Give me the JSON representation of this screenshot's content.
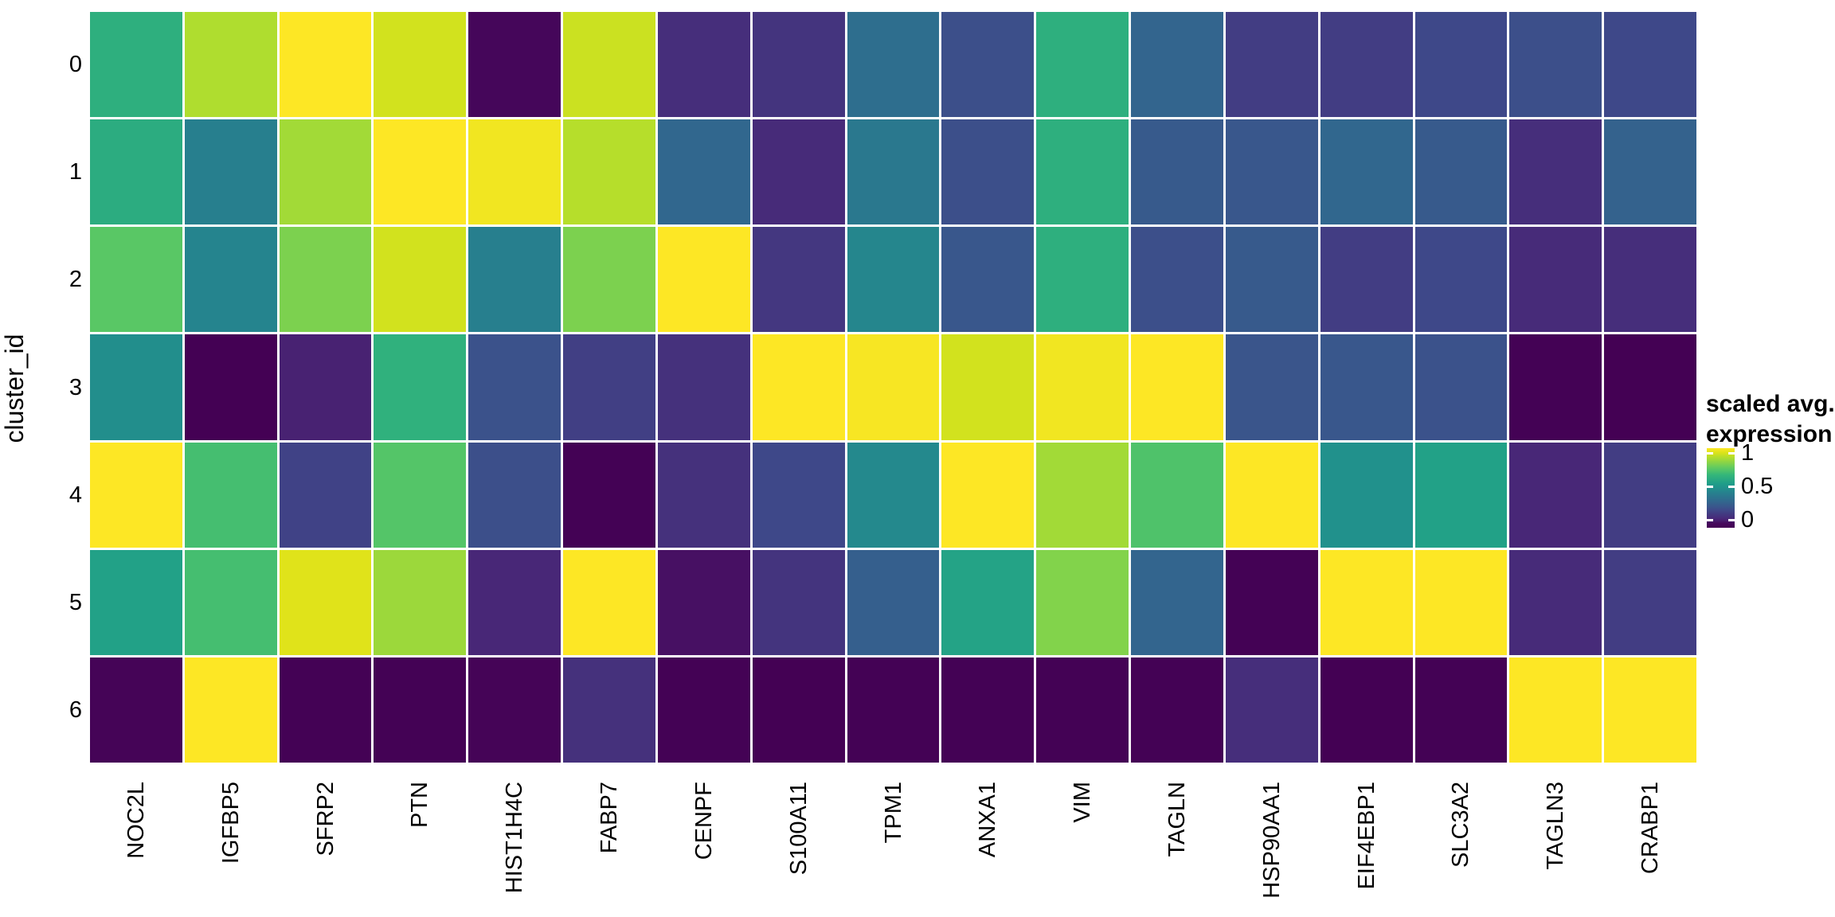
{
  "figure": {
    "background": "#ffffff",
    "grid_gap_color": "#ffffff",
    "text_color": "#000000"
  },
  "chart_data": {
    "type": "heatmap",
    "title": "",
    "xlabel": "",
    "ylabel": "cluster_id",
    "x_categories": [
      "NOC2L",
      "IGFBP5",
      "SFRP2",
      "PTN",
      "HIST1H4C",
      "FABP7",
      "CENPF",
      "S100A11",
      "TPM1",
      "ANXA1",
      "VIM",
      "TAGLN",
      "HSP90AA1",
      "EIF4EBP1",
      "SLC3A2",
      "TAGLN3",
      "CRABP1"
    ],
    "y_categories": [
      "0",
      "1",
      "2",
      "3",
      "4",
      "5",
      "6"
    ],
    "value_range": [
      0,
      1
    ],
    "grid": false,
    "colormap": "viridis",
    "colormap_anchors": [
      [
        0.0,
        "#440154"
      ],
      [
        0.056,
        "#46085c"
      ],
      [
        0.111,
        "#482878"
      ],
      [
        0.222,
        "#3e4989"
      ],
      [
        0.25,
        "#3b528b"
      ],
      [
        0.333,
        "#31688e"
      ],
      [
        0.444,
        "#26828e"
      ],
      [
        0.5,
        "#21918c"
      ],
      [
        0.556,
        "#1f9e89"
      ],
      [
        0.667,
        "#35b779"
      ],
      [
        0.75,
        "#5ec962"
      ],
      [
        0.778,
        "#6ece58"
      ],
      [
        0.889,
        "#b5de2b"
      ],
      [
        0.944,
        "#dce319"
      ],
      [
        1.0,
        "#fde725"
      ]
    ],
    "values": [
      [
        0.63,
        0.88,
        1.0,
        0.93,
        0.04,
        0.92,
        0.13,
        0.15,
        0.36,
        0.24,
        0.63,
        0.32,
        0.18,
        0.18,
        0.22,
        0.24,
        0.22
      ],
      [
        0.62,
        0.43,
        0.86,
        1.0,
        0.98,
        0.89,
        0.33,
        0.12,
        0.4,
        0.24,
        0.63,
        0.28,
        0.27,
        0.33,
        0.28,
        0.13,
        0.31
      ],
      [
        0.74,
        0.45,
        0.8,
        0.93,
        0.43,
        0.8,
        1.0,
        0.16,
        0.46,
        0.27,
        0.63,
        0.24,
        0.28,
        0.18,
        0.22,
        0.12,
        0.13
      ],
      [
        0.49,
        0.0,
        0.1,
        0.64,
        0.25,
        0.19,
        0.14,
        1.0,
        0.99,
        0.93,
        0.98,
        1.0,
        0.26,
        0.27,
        0.25,
        0.01,
        0.0
      ],
      [
        1.0,
        0.7,
        0.2,
        0.73,
        0.24,
        0.01,
        0.14,
        0.22,
        0.47,
        1.0,
        0.86,
        0.72,
        1.0,
        0.5,
        0.57,
        0.11,
        0.18
      ],
      [
        0.57,
        0.7,
        0.95,
        0.85,
        0.11,
        1.0,
        0.07,
        0.15,
        0.3,
        0.58,
        0.81,
        0.32,
        0.01,
        1.0,
        1.0,
        0.12,
        0.18
      ],
      [
        0.02,
        1.0,
        0.01,
        0.01,
        0.02,
        0.14,
        0.01,
        0.0,
        0.01,
        0.01,
        0.01,
        0.01,
        0.13,
        0.0,
        0.01,
        1.0,
        1.0
      ]
    ],
    "legend": {
      "title_lines": [
        "scaled avg.",
        "expression"
      ],
      "position": "right",
      "ticks": [
        1,
        0.5,
        0
      ],
      "tick_labels": [
        "1",
        "0.5",
        "0"
      ]
    }
  }
}
